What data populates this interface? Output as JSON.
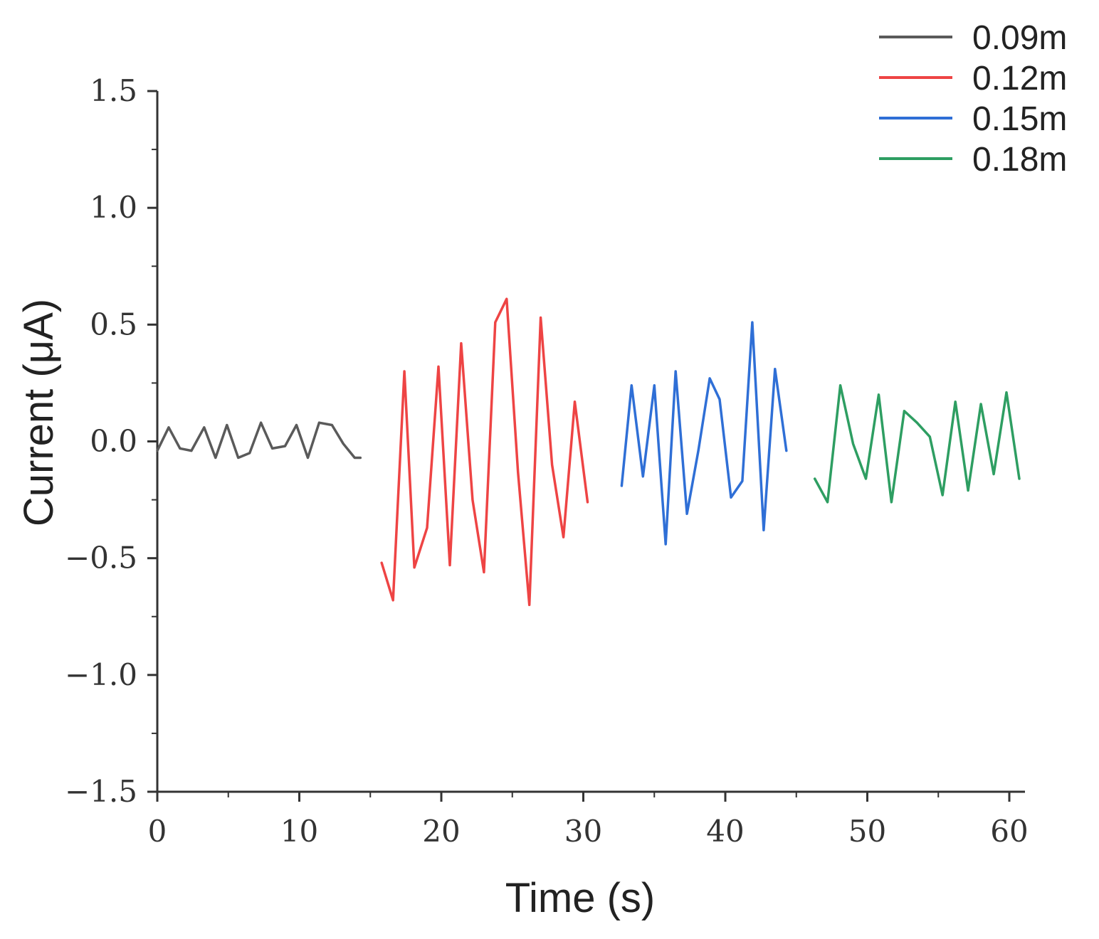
{
  "chart_data": {
    "type": "line",
    "xlabel": "Time (s)",
    "ylabel": "Current (μA)",
    "xlim": [
      0,
      62
    ],
    "ylim": [
      -1.5,
      1.5
    ],
    "x_ticks": [
      0,
      10,
      20,
      30,
      40,
      50,
      60
    ],
    "x_tick_labels": [
      "0",
      "10",
      "20",
      "30",
      "40",
      "50",
      "60"
    ],
    "y_ticks": [
      -1.5,
      -1.0,
      -0.5,
      0.0,
      0.5,
      1.0,
      1.5
    ],
    "y_tick_labels": [
      "−1.5",
      "−1.0",
      "−0.5",
      "0.0",
      "0.5",
      "1.0",
      "1.5"
    ],
    "grid": false,
    "legend_position": "top-right",
    "series": [
      {
        "name": "0.09m",
        "color": "#5a5a5a",
        "x": [
          0.0,
          0.8,
          1.6,
          2.4,
          3.3,
          4.1,
          4.9,
          5.7,
          6.5,
          7.3,
          8.1,
          9.0,
          9.8,
          10.6,
          11.4,
          12.3,
          13.1,
          13.9,
          14.3
        ],
        "y": [
          -0.04,
          0.06,
          -0.03,
          -0.04,
          0.06,
          -0.07,
          0.07,
          -0.07,
          -0.05,
          0.08,
          -0.03,
          -0.02,
          0.07,
          -0.07,
          0.08,
          0.07,
          -0.01,
          -0.07,
          -0.07
        ]
      },
      {
        "name": "0.12m",
        "color": "#ee4444",
        "x": [
          15.8,
          16.6,
          17.4,
          18.1,
          19.0,
          19.8,
          20.6,
          21.4,
          22.2,
          23.0,
          23.8,
          24.6,
          25.4,
          26.2,
          27.0,
          27.8,
          28.6,
          29.4,
          30.3
        ],
        "y": [
          -0.52,
          -0.68,
          0.3,
          -0.54,
          -0.37,
          0.32,
          -0.53,
          0.42,
          -0.25,
          -0.56,
          0.51,
          0.61,
          -0.13,
          -0.7,
          0.53,
          -0.1,
          -0.41,
          0.17,
          -0.26
        ]
      },
      {
        "name": "0.15m",
        "color": "#2f6fd6",
        "x": [
          32.7,
          33.4,
          34.2,
          35.0,
          35.8,
          36.5,
          37.3,
          38.1,
          38.9,
          39.6,
          40.4,
          41.2,
          41.9,
          42.7,
          43.5,
          44.3
        ],
        "y": [
          -0.19,
          0.24,
          -0.15,
          0.24,
          -0.44,
          0.3,
          -0.31,
          -0.04,
          0.27,
          0.18,
          -0.24,
          -0.17,
          0.51,
          -0.38,
          0.31,
          -0.04
        ]
      },
      {
        "name": "0.18m",
        "color": "#2e9e62",
        "x": [
          46.3,
          47.2,
          48.1,
          49.0,
          49.9,
          50.8,
          51.7,
          52.6,
          53.5,
          54.4,
          55.3,
          56.2,
          57.1,
          58.0,
          58.9,
          59.8,
          60.7
        ],
        "y": [
          -0.16,
          -0.26,
          0.24,
          -0.01,
          -0.16,
          0.2,
          -0.26,
          0.13,
          0.08,
          0.02,
          -0.23,
          0.17,
          -0.21,
          0.16,
          -0.14,
          0.21,
          -0.16
        ]
      }
    ]
  }
}
